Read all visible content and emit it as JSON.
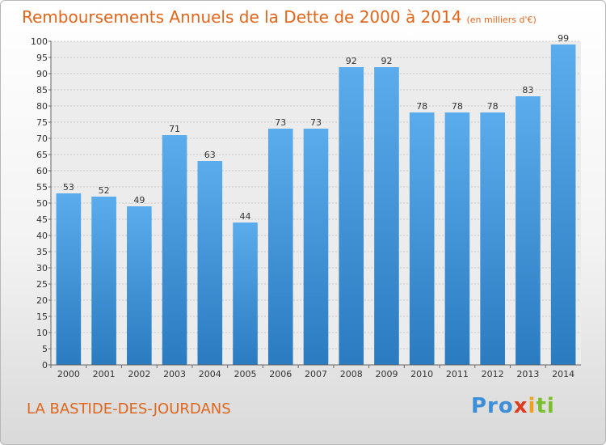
{
  "title": "Remboursements Annuels de la Dette de 2000 à 2014",
  "unit": "(en milliers d'€)",
  "city": "LA BASTIDE-DES-JOURDANS",
  "logo": {
    "p1": "Pro",
    "p2": "x",
    "p3": "i",
    "p4": "ti"
  },
  "colors": {
    "bar_top": "#5aacec",
    "bar_bottom": "#2a7bc0",
    "title": "#e0661c"
  },
  "chart_data": {
    "type": "bar",
    "title": "Remboursements Annuels de la Dette de 2000 à 2014",
    "xlabel": "",
    "ylabel": "",
    "categories": [
      "2000",
      "2001",
      "2002",
      "2003",
      "2004",
      "2005",
      "2006",
      "2007",
      "2008",
      "2009",
      "2010",
      "2011",
      "2012",
      "2013",
      "2014"
    ],
    "values": [
      53,
      52,
      49,
      71,
      63,
      44,
      73,
      73,
      92,
      92,
      78,
      78,
      78,
      83,
      99
    ],
    "ylim": [
      0,
      100
    ],
    "ytick_step": 5,
    "grid": true
  }
}
